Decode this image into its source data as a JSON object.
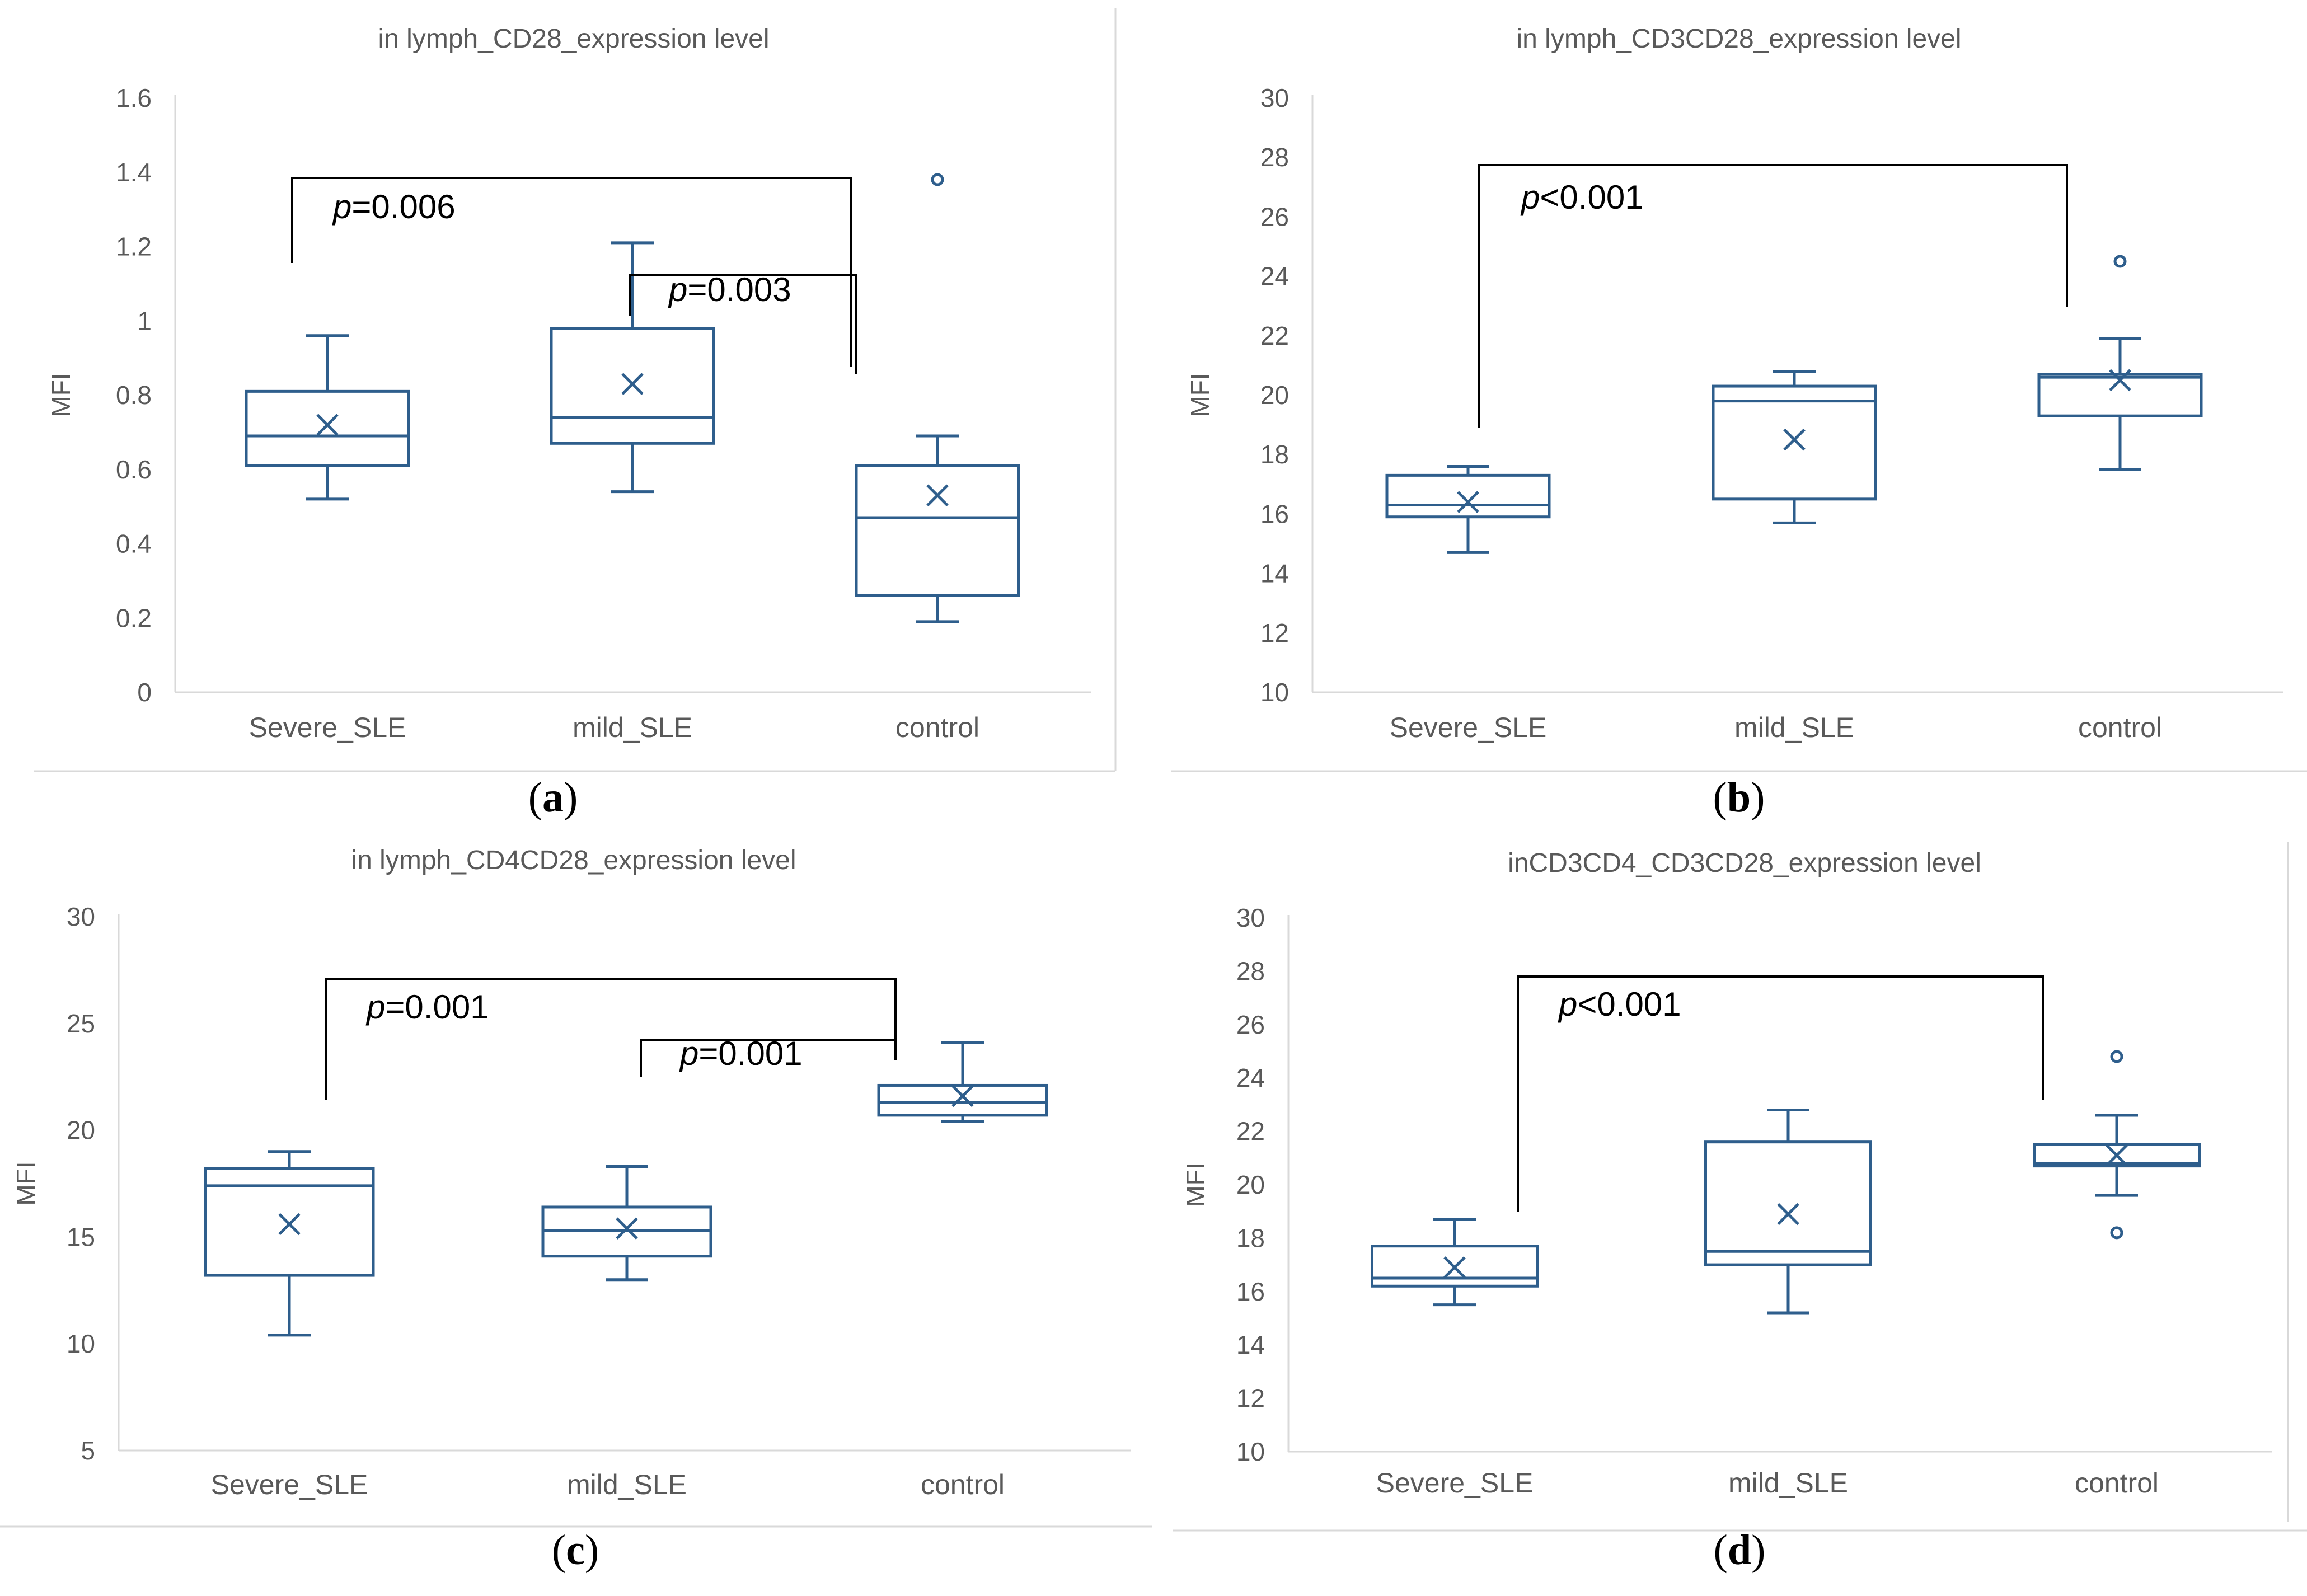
{
  "chart_data": [
    {
      "type": "boxplot",
      "panel_label": "a",
      "title": "in lymph_CD28_expression level",
      "ylabel": "MFI",
      "ylim": [
        0,
        1.6
      ],
      "yticks": [
        "0",
        "0.2",
        "0.4",
        "0.6",
        "0.8",
        "1",
        "1.2",
        "1.4",
        "1.6"
      ],
      "categories": [
        "Severe_SLE",
        "mild_SLE",
        "control"
      ],
      "boxes": [
        {
          "category": "Severe_SLE",
          "min": 0.52,
          "q1": 0.61,
          "median": 0.69,
          "q3": 0.81,
          "max": 0.96,
          "mean": 0.72,
          "outliers": []
        },
        {
          "category": "mild_SLE",
          "min": 0.54,
          "q1": 0.67,
          "median": 0.74,
          "q3": 0.98,
          "max": 1.21,
          "mean": 0.83,
          "outliers": []
        },
        {
          "category": "control",
          "min": 0.19,
          "q1": 0.26,
          "median": 0.47,
          "q3": 0.61,
          "max": 0.69,
          "mean": 0.53,
          "outliers": [
            1.38
          ]
        }
      ],
      "annotations": [
        {
          "prefix": "p",
          "text": "=0.006",
          "from": "Severe_SLE",
          "to": "control"
        },
        {
          "prefix": "p",
          "text": "=0.003",
          "from": "mild_SLE",
          "to": "control"
        }
      ]
    },
    {
      "type": "boxplot",
      "panel_label": "b",
      "title": "in lymph_CD3CD28_expression level",
      "ylabel": "MFI",
      "ylim": [
        10,
        30
      ],
      "yticks": [
        "10",
        "12",
        "14",
        "16",
        "18",
        "20",
        "22",
        "24",
        "26",
        "28",
        "30"
      ],
      "categories": [
        "Severe_SLE",
        "mild_SLE",
        "control"
      ],
      "boxes": [
        {
          "category": "Severe_SLE",
          "min": 14.7,
          "q1": 15.9,
          "median": 16.3,
          "q3": 17.3,
          "max": 17.6,
          "mean": 16.4,
          "outliers": []
        },
        {
          "category": "mild_SLE",
          "min": 15.7,
          "q1": 16.5,
          "median": 19.8,
          "q3": 20.3,
          "max": 20.8,
          "mean": 18.5,
          "outliers": []
        },
        {
          "category": "control",
          "min": 17.5,
          "q1": 19.3,
          "median": 20.6,
          "q3": 20.7,
          "max": 21.9,
          "mean": 20.5,
          "outliers": [
            24.5
          ]
        }
      ],
      "annotations": [
        {
          "prefix": "p",
          "text": "<0.001",
          "from": "Severe_SLE",
          "to": "control"
        }
      ]
    },
    {
      "type": "boxplot",
      "panel_label": "c",
      "title": "in lymph_CD4CD28_expression level",
      "ylabel": "MFI",
      "ylim": [
        5,
        30
      ],
      "yticks": [
        "5",
        "10",
        "15",
        "20",
        "25",
        "30"
      ],
      "categories": [
        "Severe_SLE",
        "mild_SLE",
        "control"
      ],
      "boxes": [
        {
          "category": "Severe_SLE",
          "min": 10.4,
          "q1": 13.2,
          "median": 17.4,
          "q3": 18.2,
          "max": 19.0,
          "mean": 15.6,
          "outliers": []
        },
        {
          "category": "mild_SLE",
          "min": 13.0,
          "q1": 14.1,
          "median": 15.3,
          "q3": 16.4,
          "max": 18.3,
          "mean": 15.4,
          "outliers": []
        },
        {
          "category": "control",
          "min": 20.4,
          "q1": 20.7,
          "median": 21.3,
          "q3": 22.1,
          "max": 24.1,
          "mean": 21.6,
          "outliers": []
        }
      ],
      "annotations": [
        {
          "prefix": "p",
          "text": "=0.001",
          "from": "Severe_SLE",
          "to": "control"
        },
        {
          "prefix": "p",
          "text": "=0.001",
          "from": "mild_SLE",
          "to": "control"
        }
      ]
    },
    {
      "type": "boxplot",
      "panel_label": "d",
      "title": "inCD3CD4_CD3CD28_expression level",
      "ylabel": "MFI",
      "ylim": [
        10,
        30
      ],
      "yticks": [
        "10",
        "12",
        "14",
        "16",
        "18",
        "20",
        "22",
        "24",
        "26",
        "28",
        "30"
      ],
      "categories": [
        "Severe_SLE",
        "mild_SLE",
        "control"
      ],
      "boxes": [
        {
          "category": "Severe_SLE",
          "min": 15.5,
          "q1": 16.2,
          "median": 16.5,
          "q3": 17.7,
          "max": 18.7,
          "mean": 16.9,
          "outliers": []
        },
        {
          "category": "mild_SLE",
          "min": 15.2,
          "q1": 17.0,
          "median": 17.5,
          "q3": 21.6,
          "max": 22.8,
          "mean": 18.9,
          "outliers": []
        },
        {
          "category": "control",
          "min": 19.6,
          "q1": 20.7,
          "median": 20.8,
          "q3": 21.5,
          "max": 22.6,
          "mean": 21.1,
          "outliers": [
            24.8,
            18.2
          ]
        }
      ],
      "annotations": [
        {
          "prefix": "p",
          "text": "<0.001",
          "from": "Severe_SLE",
          "to": "control"
        }
      ]
    }
  ],
  "colors": {
    "series": "#2e5e8c",
    "axis": "#d9d9d9",
    "text": "#595959",
    "annotation": "#000000"
  }
}
